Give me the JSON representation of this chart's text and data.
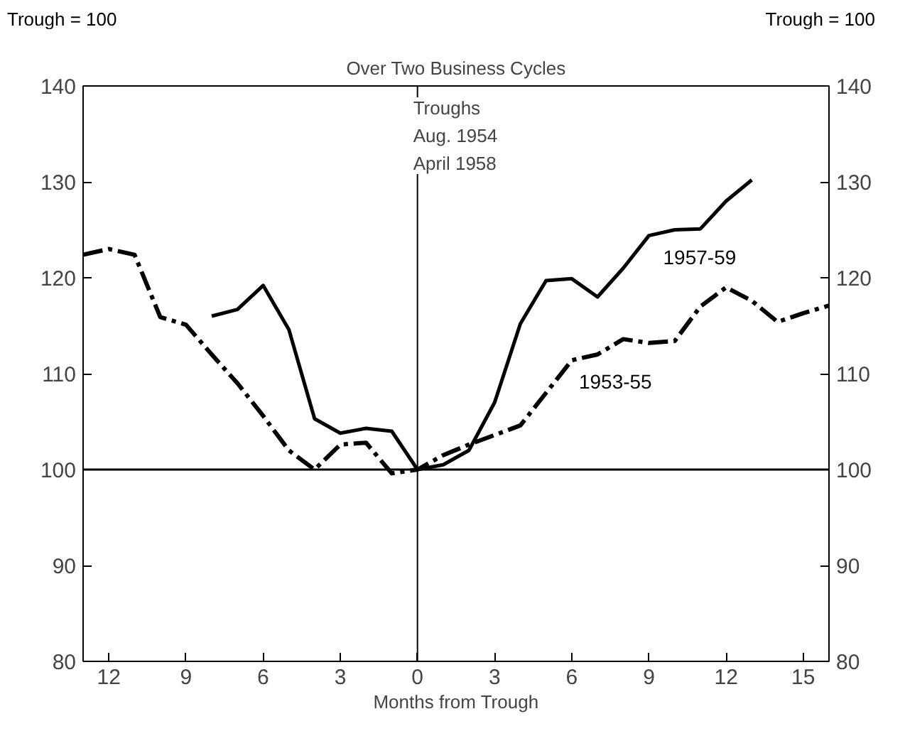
{
  "chart_data": {
    "type": "line",
    "title": "Over Two Business Cycles",
    "xlabel": "Months from Trough",
    "ylabel": "Trough = 100",
    "y2label": "Trough = 100",
    "x": [
      -13,
      -12,
      -11,
      -10,
      -9,
      -8,
      -7,
      -6,
      -5,
      -4,
      -3,
      -2,
      -1,
      0,
      1,
      2,
      3,
      4,
      5,
      6,
      7,
      8,
      9,
      10,
      11,
      12,
      13,
      14,
      15,
      16
    ],
    "series": [
      {
        "name": "1957-59",
        "color": "#000000",
        "line_style": "solid",
        "values": [
          null,
          null,
          null,
          null,
          null,
          116,
          116.7,
          119.2,
          114.6,
          105.3,
          103.8,
          104.3,
          104,
          100,
          100.5,
          102,
          107,
          115.2,
          119.7,
          119.9,
          118,
          121,
          124.4,
          125,
          125.1,
          128,
          130.2,
          null,
          null,
          null
        ]
      },
      {
        "name": "1953-55",
        "color": "#000000",
        "line_style": "dashed",
        "values": [
          122.4,
          123,
          122.4,
          115.9,
          115.1,
          112,
          109,
          105.6,
          102,
          100,
          102.6,
          102.8,
          99.6,
          100,
          101.5,
          102.6,
          103.6,
          104.6,
          108,
          111.4,
          112,
          113.6,
          113.2,
          113.4,
          117,
          119,
          117.6,
          115.4,
          116.3,
          117.1
        ]
      }
    ],
    "xlim": [
      -13,
      16
    ],
    "xticks": [
      {
        "value": -12,
        "label": "12"
      },
      {
        "value": -9,
        "label": "9"
      },
      {
        "value": -6,
        "label": "6"
      },
      {
        "value": -3,
        "label": "3"
      },
      0,
      3,
      6,
      9,
      12,
      15
    ],
    "ylim": [
      80,
      140
    ],
    "yticks": [
      80,
      90,
      100,
      110,
      120,
      130,
      140
    ],
    "y2lim": [
      80,
      140
    ],
    "y2ticks": [
      80,
      90,
      100,
      110,
      120,
      130,
      140
    ],
    "ref_lines": [
      {
        "axis": "y",
        "value": 100,
        "label": null
      },
      {
        "axis": "x",
        "value": 0,
        "label": "Troughs\nAug. 1954\nApril 1958"
      }
    ],
    "grid": false
  }
}
